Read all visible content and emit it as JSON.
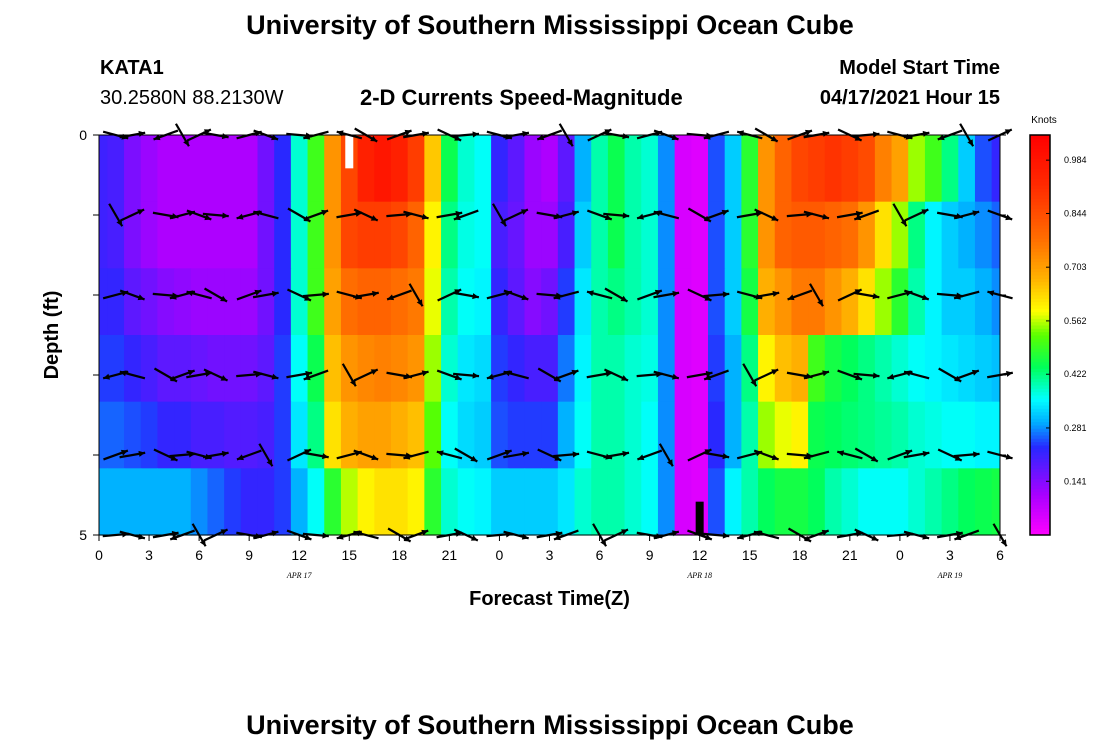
{
  "header": {
    "title": "University of Southern Mississippi Ocean Cube",
    "station": "KATA1",
    "coords": "30.2580N  88.2130W",
    "subtitle": "2-D Currents Speed-Magnitude",
    "model_label": "Model Start Time",
    "model_time": "04/17/2021 Hour 15"
  },
  "footer": {
    "title": "University of Southern Mississippi Ocean Cube"
  },
  "chart_data": {
    "type": "heatmap",
    "title": "2-D Currents Speed-Magnitude",
    "xlabel": "Forecast Time(Z)",
    "ylabel": "Depth (ft)",
    "x_hours": [
      0,
      1,
      2,
      3,
      4,
      5,
      6,
      7,
      8,
      9,
      10,
      11,
      12,
      13,
      14,
      15,
      16,
      17,
      18,
      19,
      20,
      21,
      22,
      23,
      24,
      25,
      26,
      27,
      28,
      29,
      30,
      31,
      32,
      33,
      34,
      35,
      36,
      37,
      38,
      39,
      40,
      41,
      42,
      43,
      44,
      45,
      46,
      47,
      48,
      49,
      50,
      51,
      52,
      53,
      54
    ],
    "x_tick_labels": [
      "0",
      "3",
      "6",
      "9",
      "12",
      "15",
      "18",
      "21",
      "0",
      "3",
      "6",
      "9",
      "12",
      "15",
      "18",
      "21",
      "0",
      "3",
      "6"
    ],
    "x_tick_hours": [
      0,
      3,
      6,
      9,
      12,
      15,
      18,
      21,
      24,
      27,
      30,
      33,
      36,
      39,
      42,
      45,
      48,
      51,
      54
    ],
    "date_labels": [
      {
        "text": "APR 17",
        "hour": 12
      },
      {
        "text": "APR 18",
        "hour": 36
      },
      {
        "text": "APR 19",
        "hour": 51
      }
    ],
    "y_range": [
      0,
      5
    ],
    "y_tick_labels": [
      "0",
      "5"
    ],
    "depth_layers": 5,
    "speed_knots": [
      [
        0.21,
        0.2,
        0.15,
        0.12,
        0.1,
        0.1,
        0.1,
        0.1,
        0.1,
        0.1,
        0.16,
        0.23,
        0.38,
        0.5,
        0.72,
        0.86,
        0.95,
        0.98,
        0.95,
        0.88,
        0.65,
        0.45,
        0.38,
        0.36,
        0.22,
        0.18,
        0.12,
        0.1,
        0.18,
        0.3,
        0.4,
        0.45,
        0.4,
        0.38,
        0.28,
        0.05,
        0.04,
        0.25,
        0.32,
        0.48,
        0.72,
        0.8,
        0.86,
        0.88,
        0.9,
        0.88,
        0.85,
        0.75,
        0.7,
        0.55,
        0.5,
        0.42,
        0.32,
        0.25,
        0.22
      ],
      [
        0.21,
        0.2,
        0.15,
        0.12,
        0.1,
        0.1,
        0.1,
        0.1,
        0.1,
        0.1,
        0.16,
        0.23,
        0.38,
        0.5,
        0.72,
        0.86,
        0.88,
        0.88,
        0.86,
        0.8,
        0.6,
        0.42,
        0.37,
        0.36,
        0.2,
        0.17,
        0.12,
        0.12,
        0.2,
        0.32,
        0.4,
        0.45,
        0.4,
        0.38,
        0.28,
        0.05,
        0.04,
        0.25,
        0.32,
        0.48,
        0.72,
        0.8,
        0.82,
        0.82,
        0.8,
        0.78,
        0.72,
        0.62,
        0.55,
        0.42,
        0.35,
        0.32,
        0.3,
        0.28,
        0.26
      ],
      [
        0.22,
        0.22,
        0.18,
        0.16,
        0.14,
        0.13,
        0.12,
        0.12,
        0.12,
        0.12,
        0.16,
        0.23,
        0.38,
        0.5,
        0.7,
        0.78,
        0.8,
        0.8,
        0.78,
        0.76,
        0.58,
        0.4,
        0.36,
        0.35,
        0.22,
        0.18,
        0.14,
        0.16,
        0.24,
        0.34,
        0.4,
        0.42,
        0.4,
        0.38,
        0.28,
        0.05,
        0.04,
        0.25,
        0.32,
        0.46,
        0.68,
        0.72,
        0.76,
        0.76,
        0.72,
        0.68,
        0.62,
        0.55,
        0.48,
        0.4,
        0.35,
        0.32,
        0.32,
        0.3,
        0.28
      ],
      [
        0.24,
        0.24,
        0.22,
        0.2,
        0.18,
        0.18,
        0.17,
        0.16,
        0.16,
        0.16,
        0.18,
        0.24,
        0.36,
        0.45,
        0.66,
        0.72,
        0.74,
        0.75,
        0.74,
        0.72,
        0.55,
        0.38,
        0.34,
        0.33,
        0.24,
        0.22,
        0.2,
        0.2,
        0.27,
        0.35,
        0.4,
        0.4,
        0.38,
        0.37,
        0.28,
        0.05,
        0.04,
        0.24,
        0.3,
        0.42,
        0.6,
        0.66,
        0.68,
        0.5,
        0.46,
        0.44,
        0.42,
        0.4,
        0.38,
        0.36,
        0.35,
        0.34,
        0.33,
        0.32,
        0.31
      ],
      [
        0.26,
        0.26,
        0.25,
        0.24,
        0.22,
        0.22,
        0.2,
        0.2,
        0.19,
        0.19,
        0.2,
        0.24,
        0.34,
        0.42,
        0.62,
        0.68,
        0.7,
        0.7,
        0.68,
        0.66,
        0.52,
        0.36,
        0.33,
        0.32,
        0.25,
        0.24,
        0.24,
        0.24,
        0.3,
        0.36,
        0.4,
        0.4,
        0.38,
        0.36,
        0.28,
        0.05,
        0.04,
        0.23,
        0.3,
        0.4,
        0.55,
        0.58,
        0.6,
        0.45,
        0.44,
        0.43,
        0.42,
        0.41,
        0.4,
        0.38,
        0.37,
        0.36,
        0.36,
        0.35,
        0.35
      ],
      [
        0.3,
        0.3,
        0.3,
        0.3,
        0.3,
        0.3,
        0.28,
        0.26,
        0.24,
        0.22,
        0.22,
        0.24,
        0.3,
        0.36,
        0.48,
        0.56,
        0.6,
        0.62,
        0.62,
        0.6,
        0.48,
        0.38,
        0.36,
        0.35,
        0.32,
        0.32,
        0.32,
        0.32,
        0.34,
        0.38,
        0.4,
        0.4,
        0.38,
        0.36,
        0.28,
        0.05,
        0.04,
        0.25,
        0.35,
        0.4,
        0.44,
        0.46,
        0.46,
        0.44,
        0.4,
        0.38,
        0.36,
        0.36,
        0.36,
        0.38,
        0.4,
        0.42,
        0.44,
        0.45,
        0.46
      ]
    ],
    "arrow_hours": [
      1,
      2,
      4,
      5,
      6,
      7,
      9,
      10,
      12,
      13,
      15,
      16,
      18,
      19,
      21,
      22,
      24,
      25,
      27,
      28,
      30,
      31,
      33,
      34,
      36,
      37,
      39,
      40,
      42,
      43,
      45,
      46,
      48,
      49,
      51,
      52,
      54
    ],
    "arrow_depth_rows": [
      0,
      1,
      2,
      3,
      4,
      5
    ],
    "colorbar": {
      "label": "Knots",
      "ticks": [
        "0.984",
        "0.844",
        "0.703",
        "0.562",
        "0.422",
        "0.281",
        "0.141"
      ],
      "tick_values": [
        0.984,
        0.844,
        0.703,
        0.562,
        0.422,
        0.281,
        0.141
      ],
      "range": [
        0,
        1.05
      ]
    }
  }
}
